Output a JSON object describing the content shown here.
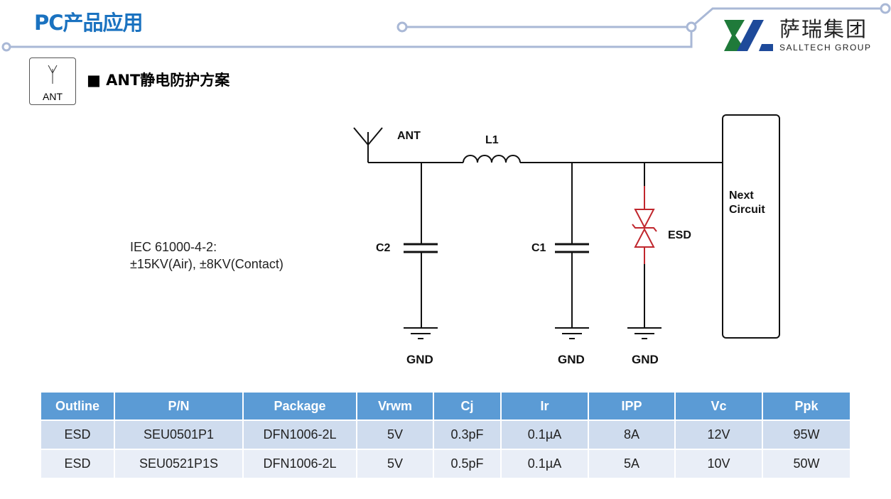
{
  "header": {
    "title": "PC产品应用",
    "logo_cn": "萨瑞集团",
    "logo_en": "SALLTECH GROUP"
  },
  "section": {
    "icon_label": "ANT",
    "title": "ANT静电防护方案"
  },
  "standard": {
    "line1": "IEC 61000-4-2:",
    "line2": "±15KV(Air), ±8KV(Contact)"
  },
  "circuit": {
    "ant": "ANT",
    "l1": "L1",
    "c2": "C2",
    "c1": "C1",
    "esd": "ESD",
    "next": "Next Circuit",
    "gnd": "GND",
    "esd_color": "#c0262d"
  },
  "table": {
    "headers": [
      "Outline",
      "P/N",
      "Package",
      "Vrwm",
      "Cj",
      "Ir",
      "IPP",
      "Vc",
      "Ppk"
    ],
    "rows": [
      [
        "ESD",
        "SEU0501P1",
        "DFN1006-2L",
        "5V",
        "0.3pF",
        "0.1µA",
        "8A",
        "12V",
        "95W"
      ],
      [
        "ESD",
        "SEU0521P1S",
        "DFN1006-2L",
        "5V",
        "0.5pF",
        "0.1µA",
        "5A",
        "10V",
        "50W"
      ]
    ]
  },
  "colors": {
    "title": "#1a72c0",
    "table_header": "#5b9bd5",
    "row_a": "#cfdcee",
    "row_b": "#e9eef7",
    "deco_line": "#a9b8d6"
  }
}
